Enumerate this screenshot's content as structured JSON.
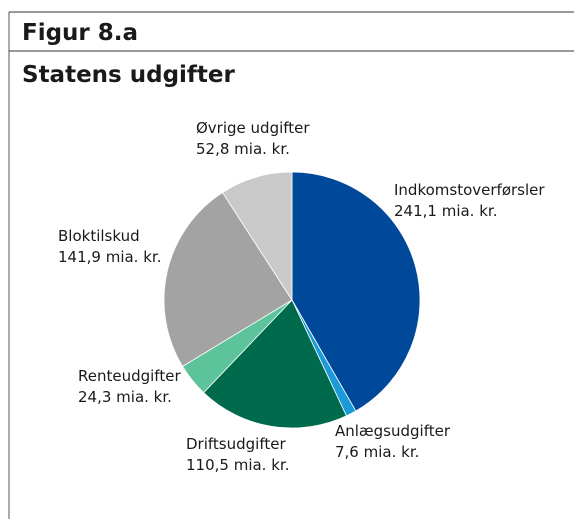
{
  "chart_data": {
    "type": "pie",
    "figure_label": "Figur 8.a",
    "title": "Statens udgifter",
    "categories": [
      "Indkomstoverførsler",
      "Anlægsudgifter",
      "Driftsudgifter",
      "Renteudgifter",
      "Bloktilskud",
      "Øvrige udgifter"
    ],
    "values": [
      241.1,
      7.6,
      110.5,
      24.3,
      141.9,
      52.8
    ],
    "value_labels": [
      "241,1 mia. kr.",
      "7,6 mia. kr.",
      "110,5 mia. kr.",
      "24,3 mia. kr.",
      "141,9 mia. kr.",
      "52,8 mia. kr."
    ],
    "colors": [
      "#00499a",
      "#1a9ad8",
      "#006a4d",
      "#5cc39b",
      "#a3a3a3",
      "#c9c9c9"
    ]
  }
}
